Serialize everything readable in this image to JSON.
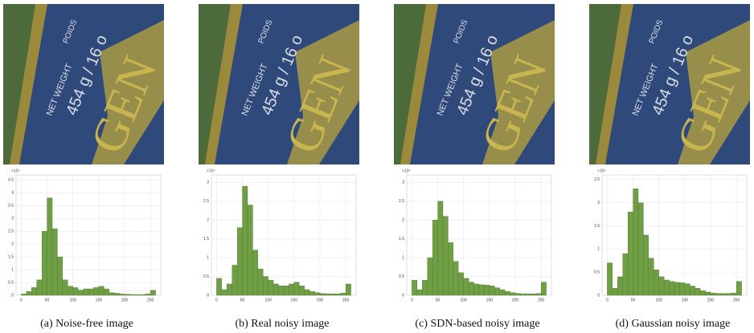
{
  "photo_text": [
    "NET WEIGHT",
    "POIDS",
    "454 g / 16 o",
    "GEN"
  ],
  "chart_data": [
    {
      "type": "histogram",
      "title": "(a) Noise-free image",
      "y_multiplier": "×10⁴",
      "color": "#6f9e45",
      "bins": [
        0,
        10,
        20,
        30,
        40,
        50,
        60,
        70,
        80,
        90,
        100,
        110,
        120,
        130,
        140,
        150,
        160,
        170,
        180,
        190,
        200,
        210,
        220,
        230,
        240,
        250,
        260
      ],
      "values": [
        0.05,
        0.15,
        0.3,
        0.6,
        2.5,
        3.8,
        2.6,
        1.5,
        0.6,
        0.35,
        0.3,
        0.2,
        0.25,
        0.25,
        0.3,
        0.35,
        0.25,
        0.1,
        0.08,
        0.05,
        0.04,
        0.03,
        0.03,
        0.03,
        0.05,
        0.2
      ],
      "xlim": [
        -10,
        270
      ],
      "xticks": [
        0,
        50,
        100,
        150,
        200,
        250
      ],
      "ylim": [
        0,
        4.7
      ],
      "yticks": [
        0,
        0.5,
        1,
        1.5,
        2,
        2.5,
        3,
        3.5,
        4,
        4.5
      ],
      "grid": true
    },
    {
      "type": "histogram",
      "title": "(b) Real noisy image",
      "y_multiplier": "×10⁴",
      "color": "#6f9e45",
      "bins": [
        0,
        10,
        20,
        30,
        40,
        50,
        60,
        70,
        80,
        90,
        100,
        110,
        120,
        130,
        140,
        150,
        160,
        170,
        180,
        190,
        200,
        210,
        220,
        230,
        240,
        250,
        260
      ],
      "values": [
        0.45,
        0.15,
        0.3,
        0.8,
        1.8,
        2.9,
        2.4,
        1.2,
        0.7,
        0.5,
        0.4,
        0.3,
        0.25,
        0.25,
        0.3,
        0.35,
        0.25,
        0.15,
        0.1,
        0.07,
        0.05,
        0.04,
        0.04,
        0.04,
        0.06,
        0.3
      ],
      "xlim": [
        -10,
        270
      ],
      "xticks": [
        0,
        50,
        100,
        150,
        200,
        250
      ],
      "ylim": [
        0,
        3.2
      ],
      "yticks": [
        0,
        0.5,
        1,
        1.5,
        2,
        2.5,
        3
      ],
      "grid": true
    },
    {
      "type": "histogram",
      "title": "(c) SDN-based noisy image",
      "y_multiplier": "×10⁴",
      "color": "#6f9e45",
      "bins": [
        0,
        10,
        20,
        30,
        40,
        50,
        60,
        70,
        80,
        90,
        100,
        110,
        120,
        130,
        140,
        150,
        160,
        170,
        180,
        190,
        200,
        210,
        220,
        230,
        240,
        250,
        260
      ],
      "values": [
        0.4,
        0.15,
        0.4,
        1.0,
        2.0,
        2.5,
        2.1,
        1.4,
        0.9,
        0.6,
        0.45,
        0.35,
        0.3,
        0.28,
        0.27,
        0.25,
        0.2,
        0.15,
        0.1,
        0.07,
        0.05,
        0.04,
        0.04,
        0.04,
        0.05,
        0.35
      ],
      "xlim": [
        -10,
        270
      ],
      "xticks": [
        0,
        50,
        100,
        150,
        200,
        250
      ],
      "ylim": [
        0,
        3.2
      ],
      "yticks": [
        0,
        0.5,
        1,
        1.5,
        2,
        2.5,
        3
      ],
      "grid": true
    },
    {
      "type": "histogram",
      "title": "(d) Gaussian noisy image",
      "y_multiplier": "×10⁴",
      "color": "#6f9e45",
      "bins": [
        0,
        10,
        20,
        30,
        40,
        50,
        60,
        70,
        80,
        90,
        100,
        110,
        120,
        130,
        140,
        150,
        160,
        170,
        180,
        190,
        200,
        210,
        220,
        230,
        240,
        250,
        260
      ],
      "values": [
        0.7,
        0.15,
        0.4,
        0.9,
        1.8,
        2.3,
        2.0,
        1.3,
        0.8,
        0.55,
        0.4,
        0.33,
        0.3,
        0.28,
        0.27,
        0.25,
        0.2,
        0.15,
        0.1,
        0.07,
        0.05,
        0.04,
        0.04,
        0.04,
        0.05,
        0.3
      ],
      "xlim": [
        -10,
        270
      ],
      "xticks": [
        0,
        50,
        100,
        150,
        200,
        250
      ],
      "ylim": [
        0,
        2.6
      ],
      "yticks": [
        0,
        0.5,
        1,
        1.5,
        2,
        2.5
      ],
      "grid": true
    }
  ]
}
